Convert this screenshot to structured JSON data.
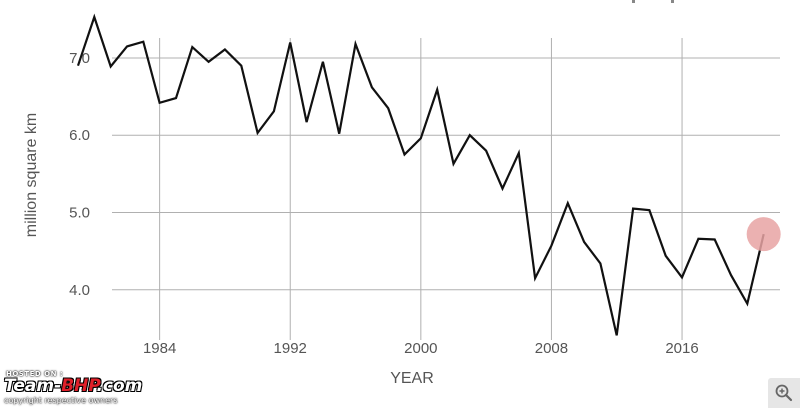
{
  "chart_data": {
    "type": "line",
    "title": "",
    "xlabel": "YEAR",
    "ylabel": "million square km",
    "xlim": [
      1979,
      2022
    ],
    "ylim": [
      3.35,
      7.75
    ],
    "xticks": [
      1984,
      1992,
      2000,
      2008,
      2016
    ],
    "xtick_labels": [
      "1984",
      "1992",
      "2000",
      "2008",
      "2016"
    ],
    "yticks": [
      4.0,
      5.0,
      6.0,
      7.0
    ],
    "ytick_labels": [
      "4.0",
      "5.0",
      "6.0",
      "7.0"
    ],
    "grid": true,
    "series": [
      {
        "color": "#111111",
        "x": [
          1979,
          1980,
          1981,
          1982,
          1983,
          1984,
          1985,
          1986,
          1987,
          1988,
          1989,
          1990,
          1991,
          1992,
          1993,
          1994,
          1995,
          1996,
          1997,
          1998,
          1999,
          2000,
          2001,
          2002,
          2003,
          2004,
          2005,
          2006,
          2007,
          2008,
          2009,
          2010,
          2011,
          2012,
          2013,
          2014,
          2015,
          2016,
          2017,
          2018,
          2019,
          2020,
          2021
        ],
        "y": [
          6.9,
          7.53,
          6.89,
          7.15,
          7.21,
          6.42,
          6.48,
          7.14,
          6.95,
          7.11,
          6.9,
          6.03,
          6.31,
          7.2,
          6.17,
          6.95,
          6.02,
          7.18,
          6.62,
          6.35,
          5.75,
          5.96,
          6.59,
          5.63,
          6.0,
          5.8,
          5.31,
          5.77,
          4.15,
          4.57,
          5.12,
          4.62,
          4.34,
          3.41,
          5.05,
          5.03,
          4.44,
          4.16,
          4.66,
          4.65,
          4.19,
          3.82,
          4.72
        ]
      }
    ],
    "highlight": {
      "x": 2021,
      "y": 4.72,
      "color": "#e8a3a3"
    }
  },
  "watermark": {
    "hosted_on": "HOSTED ON :",
    "brand_part1": "Team-",
    "brand_part2": "BHP",
    "brand_part3": ".com",
    "copyright": "copyright respective owners"
  },
  "zoom_icon_name": "zoom-in-icon"
}
